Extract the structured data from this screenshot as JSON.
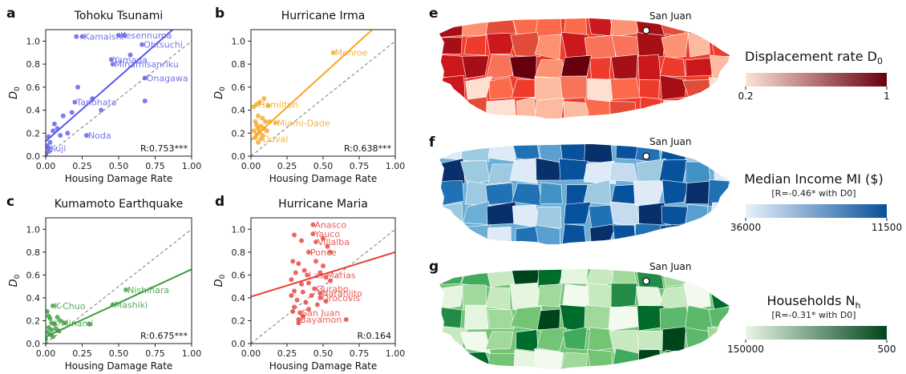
{
  "chart_data": [
    {
      "panel": "a",
      "type": "scatter",
      "title": "Tohoku Tsunami",
      "xlabel": "Housing Damage Rate",
      "ylabel": "D0",
      "xlim": [
        0,
        1
      ],
      "ylim": [
        0,
        1.1
      ],
      "xticks": [
        "0.00",
        "0.25",
        "0.50",
        "0.75",
        "1.00"
      ],
      "yticks": [
        "0.0",
        "0.2",
        "0.4",
        "0.6",
        "0.8",
        "1.0"
      ],
      "color": "#5b5bea",
      "points": [
        {
          "x": 0.25,
          "y": 1.04,
          "label": "Kamaishi"
        },
        {
          "x": 0.5,
          "y": 1.05,
          "label": "Kesennuma"
        },
        {
          "x": 0.66,
          "y": 0.97,
          "label": "Ohtsuchi"
        },
        {
          "x": 0.45,
          "y": 0.84,
          "label": "Yamada"
        },
        {
          "x": 0.46,
          "y": 0.8,
          "label": "Minamisanriku"
        },
        {
          "x": 0.68,
          "y": 0.68,
          "label": "Onagawa"
        },
        {
          "x": 0.2,
          "y": 0.47,
          "label": "Tanohata"
        },
        {
          "x": 0.28,
          "y": 0.18,
          "label": "Noda"
        },
        {
          "x": 0.02,
          "y": 0.07,
          "label": "Kuji"
        },
        {
          "x": 0.21,
          "y": 1.04
        },
        {
          "x": 0.54,
          "y": 1.05
        },
        {
          "x": 0.58,
          "y": 0.88
        },
        {
          "x": 0.68,
          "y": 0.48
        },
        {
          "x": 0.38,
          "y": 0.4
        },
        {
          "x": 0.22,
          "y": 0.6
        },
        {
          "x": 0.18,
          "y": 0.38
        },
        {
          "x": 0.32,
          "y": 0.5
        },
        {
          "x": 0.12,
          "y": 0.35
        },
        {
          "x": 0.06,
          "y": 0.28
        },
        {
          "x": 0.08,
          "y": 0.24
        },
        {
          "x": 0.05,
          "y": 0.22
        },
        {
          "x": 0.15,
          "y": 0.2
        },
        {
          "x": 0.02,
          "y": 0.17
        },
        {
          "x": 0.03,
          "y": 0.12
        },
        {
          "x": 0.01,
          "y": 0.09
        },
        {
          "x": 0.02,
          "y": 0.04
        },
        {
          "x": 0.0,
          "y": 0.02
        },
        {
          "x": 0.1,
          "y": 0.18
        }
      ],
      "fit": [
        [
          0,
          0.13
        ],
        [
          0.87,
          1.1
        ]
      ],
      "annotation": "R:0.753***"
    },
    {
      "panel": "b",
      "type": "scatter",
      "title": "Hurricane Irma",
      "xlabel": "Housing Damage Rate",
      "ylabel": "D0",
      "xlim": [
        0,
        1
      ],
      "ylim": [
        0,
        1.1
      ],
      "xticks": [
        "0.00",
        "0.25",
        "0.50",
        "0.75",
        "1.00"
      ],
      "yticks": [
        "0.0",
        "0.2",
        "0.4",
        "0.6",
        "0.8",
        "1.0"
      ],
      "color": "#f5a623",
      "points": [
        {
          "x": 0.57,
          "y": 0.9,
          "label": "Monroe"
        },
        {
          "x": 0.04,
          "y": 0.45,
          "label": "Hamilton"
        },
        {
          "x": 0.17,
          "y": 0.29,
          "label": "Miami-Dade"
        },
        {
          "x": 0.07,
          "y": 0.15,
          "label": "Duval"
        },
        {
          "x": 0.02,
          "y": 0.43
        },
        {
          "x": 0.06,
          "y": 0.47
        },
        {
          "x": 0.09,
          "y": 0.5
        },
        {
          "x": 0.12,
          "y": 0.44
        },
        {
          "x": 0.05,
          "y": 0.35
        },
        {
          "x": 0.08,
          "y": 0.33
        },
        {
          "x": 0.03,
          "y": 0.3
        },
        {
          "x": 0.1,
          "y": 0.3
        },
        {
          "x": 0.04,
          "y": 0.27
        },
        {
          "x": 0.07,
          "y": 0.26
        },
        {
          "x": 0.05,
          "y": 0.24
        },
        {
          "x": 0.09,
          "y": 0.24
        },
        {
          "x": 0.02,
          "y": 0.22
        },
        {
          "x": 0.06,
          "y": 0.21
        },
        {
          "x": 0.04,
          "y": 0.19
        },
        {
          "x": 0.08,
          "y": 0.18
        },
        {
          "x": 0.11,
          "y": 0.22
        },
        {
          "x": 0.03,
          "y": 0.16
        },
        {
          "x": 0.13,
          "y": 0.3
        },
        {
          "x": 0.05,
          "y": 0.12
        }
      ],
      "fit": [
        [
          0,
          0.14
        ],
        [
          0.84,
          1.1
        ]
      ],
      "annotation": "R:0.638***"
    },
    {
      "panel": "c",
      "type": "scatter",
      "title": "Kumamoto Earthquake",
      "xlabel": "Housing Damage Rate",
      "ylabel": "D0",
      "xlim": [
        0,
        1
      ],
      "ylim": [
        0,
        1.1
      ],
      "xticks": [
        "0.00",
        "0.25",
        "0.50",
        "0.75",
        "1.00"
      ],
      "yticks": [
        "0.0",
        "0.2",
        "0.4",
        "0.6",
        "0.8",
        "1.0"
      ],
      "color": "#3c9b3c",
      "points": [
        {
          "x": 0.55,
          "y": 0.47,
          "label": "Nishihara"
        },
        {
          "x": 0.46,
          "y": 0.34,
          "label": "Mashiki"
        },
        {
          "x": 0.05,
          "y": 0.33,
          "label": "K-Chuo"
        },
        {
          "x": 0.04,
          "y": 0.18,
          "label": "K-Minami"
        },
        {
          "x": 0.01,
          "y": 0.28
        },
        {
          "x": 0.02,
          "y": 0.24
        },
        {
          "x": 0.03,
          "y": 0.22
        },
        {
          "x": 0.08,
          "y": 0.23
        },
        {
          "x": 0.1,
          "y": 0.2
        },
        {
          "x": 0.06,
          "y": 0.17
        },
        {
          "x": 0.13,
          "y": 0.18
        },
        {
          "x": 0.3,
          "y": 0.17
        },
        {
          "x": 0.02,
          "y": 0.14
        },
        {
          "x": 0.04,
          "y": 0.12
        },
        {
          "x": 0.07,
          "y": 0.13
        },
        {
          "x": 0.01,
          "y": 0.1
        },
        {
          "x": 0.03,
          "y": 0.08
        },
        {
          "x": 0.05,
          "y": 0.06
        },
        {
          "x": 0.09,
          "y": 0.11
        },
        {
          "x": 0.0,
          "y": 0.04
        }
      ],
      "fit": [
        [
          0,
          0.06
        ],
        [
          1.0,
          0.65
        ]
      ],
      "annotation": "R:0.675***"
    },
    {
      "panel": "d",
      "type": "scatter",
      "title": "Hurricane Maria",
      "xlabel": "Housing Damage Rate",
      "ylabel": "D0",
      "xlim": [
        0,
        1
      ],
      "ylim": [
        0,
        1.1
      ],
      "xticks": [
        "0.00",
        "0.25",
        "0.50",
        "0.75",
        "1.00"
      ],
      "yticks": [
        "0.0",
        "0.2",
        "0.4",
        "0.6",
        "0.8",
        "1.0"
      ],
      "color": "#e8403a",
      "points": [
        {
          "x": 0.43,
          "y": 1.04,
          "label": "Anasco"
        },
        {
          "x": 0.43,
          "y": 0.96,
          "label": "Yauco"
        },
        {
          "x": 0.45,
          "y": 0.89,
          "label": "Villalba"
        },
        {
          "x": 0.4,
          "y": 0.8,
          "label": "Ponce"
        },
        {
          "x": 0.39,
          "y": 0.6,
          "label": "Las Marias"
        },
        {
          "x": 0.44,
          "y": 0.48,
          "label": "Gurabo"
        },
        {
          "x": 0.48,
          "y": 0.44,
          "label": "Naranjito"
        },
        {
          "x": 0.48,
          "y": 0.4,
          "label": "Orocovis"
        },
        {
          "x": 0.34,
          "y": 0.27,
          "label": "San Juan"
        },
        {
          "x": 0.33,
          "y": 0.21,
          "label": "Bayamon"
        },
        {
          "x": 0.66,
          "y": 0.21
        },
        {
          "x": 0.3,
          "y": 0.95
        },
        {
          "x": 0.35,
          "y": 0.9
        },
        {
          "x": 0.5,
          "y": 0.92
        },
        {
          "x": 0.53,
          "y": 0.85
        },
        {
          "x": 0.55,
          "y": 0.8
        },
        {
          "x": 0.29,
          "y": 0.72
        },
        {
          "x": 0.33,
          "y": 0.7
        },
        {
          "x": 0.45,
          "y": 0.72
        },
        {
          "x": 0.5,
          "y": 0.68
        },
        {
          "x": 0.37,
          "y": 0.64
        },
        {
          "x": 0.31,
          "y": 0.62
        },
        {
          "x": 0.28,
          "y": 0.56
        },
        {
          "x": 0.35,
          "y": 0.52
        },
        {
          "x": 0.4,
          "y": 0.53
        },
        {
          "x": 0.52,
          "y": 0.58
        },
        {
          "x": 0.55,
          "y": 0.55
        },
        {
          "x": 0.3,
          "y": 0.46
        },
        {
          "x": 0.36,
          "y": 0.45
        },
        {
          "x": 0.42,
          "y": 0.42
        },
        {
          "x": 0.32,
          "y": 0.38
        },
        {
          "x": 0.38,
          "y": 0.36
        },
        {
          "x": 0.46,
          "y": 0.34
        },
        {
          "x": 0.52,
          "y": 0.37
        },
        {
          "x": 0.3,
          "y": 0.32
        },
        {
          "x": 0.4,
          "y": 0.3
        },
        {
          "x": 0.36,
          "y": 0.24
        },
        {
          "x": 0.28,
          "y": 0.42
        },
        {
          "x": 0.48,
          "y": 0.62
        },
        {
          "x": 0.33,
          "y": 0.18
        },
        {
          "x": 0.29,
          "y": 0.28
        }
      ],
      "fit": [
        [
          0,
          0.41
        ],
        [
          1.0,
          0.8
        ]
      ],
      "annotation": "R:0.164"
    }
  ],
  "maps": [
    {
      "panel": "e",
      "title": "Displacement rate D",
      "title_sub": "0",
      "note": "",
      "city": "San Juan",
      "colorbar": {
        "min_label": "0.2",
        "max_label": "1",
        "from": "#fde3d8",
        "to": "#67000d"
      },
      "palette": [
        "#fcbba1",
        "#fc9272",
        "#fb6a4a",
        "#ef3b2c",
        "#cb181d",
        "#a50f15",
        "#67000d",
        "#fee0d2",
        "#f7735a",
        "#e24c38"
      ]
    },
    {
      "panel": "f",
      "title": "Median Income MI ($)",
      "title_sub": "",
      "note": "[R=-0.46* with D0]",
      "city": "San Juan",
      "colorbar": {
        "min_label": "36000",
        "max_label": "11500",
        "from": "#e8f1fa",
        "to": "#08519c"
      },
      "palette": [
        "#deebf7",
        "#c6dbef",
        "#9ecae1",
        "#6baed6",
        "#4292c6",
        "#2171b5",
        "#08519c",
        "#08306b",
        "#eff5fb",
        "#5b9fd0"
      ]
    },
    {
      "panel": "g",
      "title": "Households N",
      "title_sub": "h",
      "note": "[R=-0.31* with D0]",
      "city": "San Juan",
      "colorbar": {
        "min_label": "150000",
        "max_label": "500",
        "from": "#e9f6e6",
        "to": "#00441b"
      },
      "palette": [
        "#e5f5e0",
        "#c7e9c0",
        "#a1d99b",
        "#74c476",
        "#41ab5d",
        "#238b45",
        "#006d2c",
        "#00441b",
        "#f2faef",
        "#5cb86a"
      ]
    }
  ]
}
